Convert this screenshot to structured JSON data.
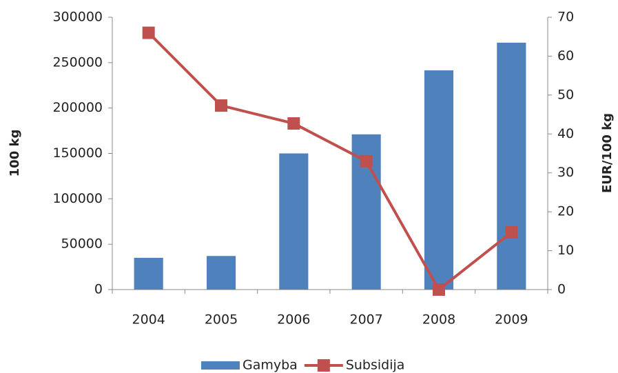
{
  "chart_data": {
    "type": "bar_line",
    "categories": [
      "2004",
      "2005",
      "2006",
      "2007",
      "2008",
      "2009"
    ],
    "series": [
      {
        "name": "Gamyba",
        "type": "bar",
        "color": "#4f81bd",
        "values": [
          35000,
          37000,
          150000,
          171000,
          241500,
          272000
        ]
      },
      {
        "name": "Subsidija",
        "type": "line",
        "axis": "y2",
        "color": "#c0504d",
        "values": [
          66,
          47.3,
          42.7,
          33,
          0,
          14.7
        ]
      }
    ],
    "ylabel": "100 kg",
    "y2label": "EUR/100 kg",
    "ylim": [
      0,
      300000
    ],
    "yticks": [
      0,
      50000,
      100000,
      150000,
      200000,
      250000,
      300000
    ],
    "y2lim": [
      0,
      70
    ],
    "y2ticks": [
      0,
      10,
      20,
      30,
      40,
      50,
      60,
      70
    ],
    "grid": false,
    "legend": "bottom"
  }
}
